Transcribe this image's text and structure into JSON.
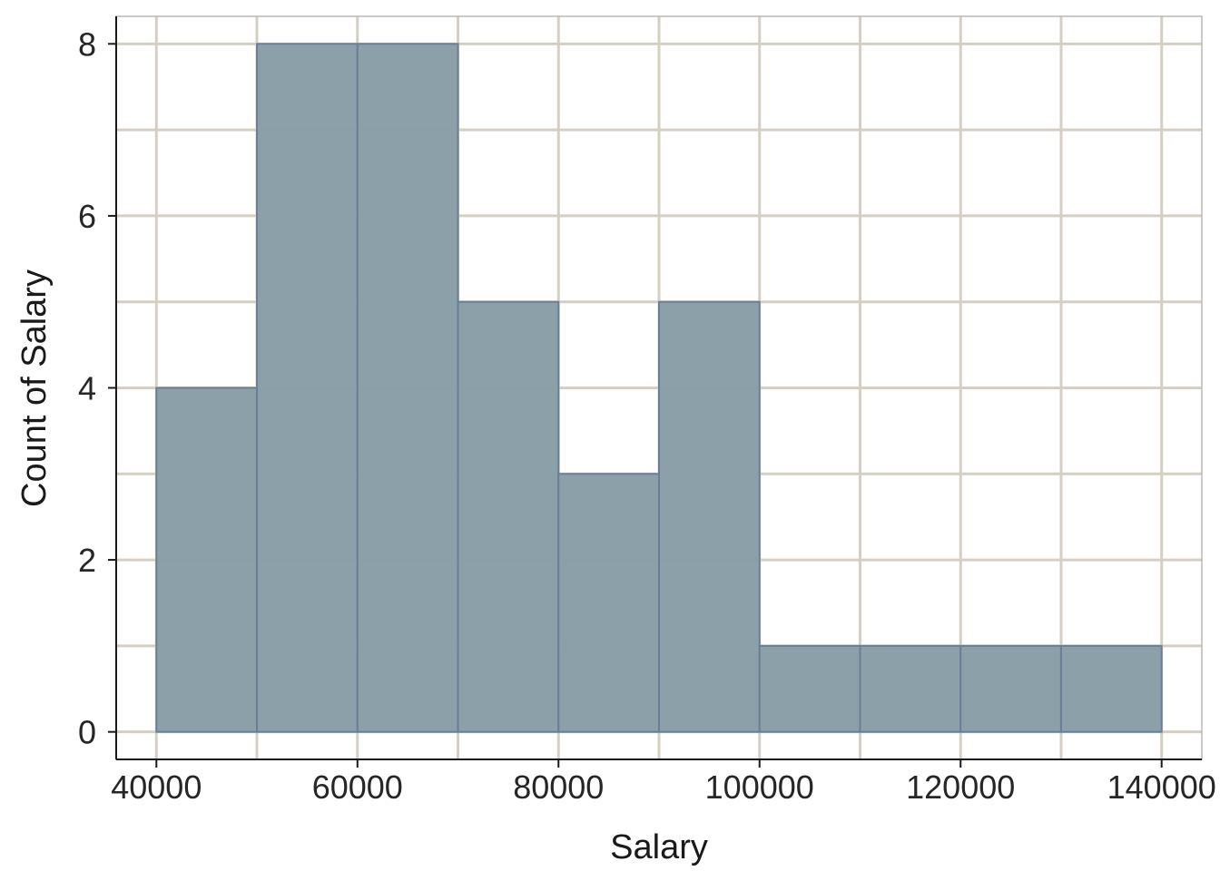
{
  "chart_data": {
    "type": "bar",
    "title": "",
    "xlabel": "Salary",
    "ylabel": "Count of Salary",
    "bin_edges": [
      40000,
      50000,
      60000,
      70000,
      80000,
      90000,
      100000,
      110000,
      120000,
      130000,
      140000
    ],
    "values": [
      4,
      8,
      8,
      5,
      3,
      5,
      1,
      1,
      1,
      1
    ],
    "xlim": [
      36000,
      144000
    ],
    "ylim": [
      -0.32,
      8.32
    ],
    "xticks": [
      40000,
      60000,
      80000,
      100000,
      120000,
      140000
    ],
    "xtick_labels": [
      "40000",
      "60000",
      "80000",
      "100000",
      "120000",
      "140000"
    ],
    "yticks": [
      0,
      2,
      4,
      6,
      8
    ],
    "ytick_labels": [
      "0",
      "2",
      "4",
      "6",
      "8"
    ],
    "x_minor_grid_step": 10000,
    "y_minor_grid_step": 1,
    "grid": true,
    "legend": "none",
    "colors": {
      "bar_fill": "#8a9ea8",
      "bar_edge": "#6a7f96",
      "grid": "#d5cfc3",
      "axis": "#1a1a1a",
      "frame": "#b8b8b8",
      "text": "#262626"
    }
  }
}
